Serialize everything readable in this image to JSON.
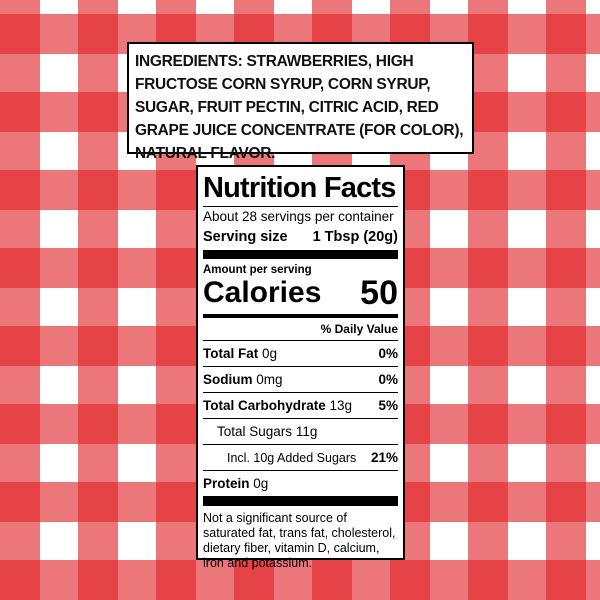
{
  "ingredients": {
    "label": "INGREDIENTS:",
    "text": "STRAWBERRIES, HIGH FRUCTOSE CORN SYRUP, CORN SYRUP, SUGAR, FRUIT PECTIN, CITRIC ACID, RED GRAPE JUICE CONCENTRATE (FOR COLOR), NATURAL FLAVOR."
  },
  "nutrition": {
    "title": "Nutrition Facts",
    "servings": "About 28 servings per container",
    "serving_size_label": "Serving size",
    "serving_size": "1 Tbsp (20g)",
    "amount_per_serving": "Amount per serving",
    "calories_label": "Calories",
    "calories": "50",
    "daily_value_header": "% Daily Value",
    "rows": [
      {
        "name": "Total Fat",
        "amount": "0g",
        "dv": "0%"
      },
      {
        "name": "Sodium",
        "amount": "0mg",
        "dv": "0%"
      },
      {
        "name": "Total Carbohydrate",
        "amount": "13g",
        "dv": "5%"
      },
      {
        "name": "Total Sugars",
        "amount": "11g"
      },
      {
        "name": "Incl. 10g Added Sugars",
        "dv": "21%"
      },
      {
        "name": "Protein",
        "amount": "0g"
      }
    ],
    "footnote": "Not a significant source of saturated fat, trans fat, cholesterol, dietary fiber, vitamin D, calcium, iron and potassium."
  }
}
